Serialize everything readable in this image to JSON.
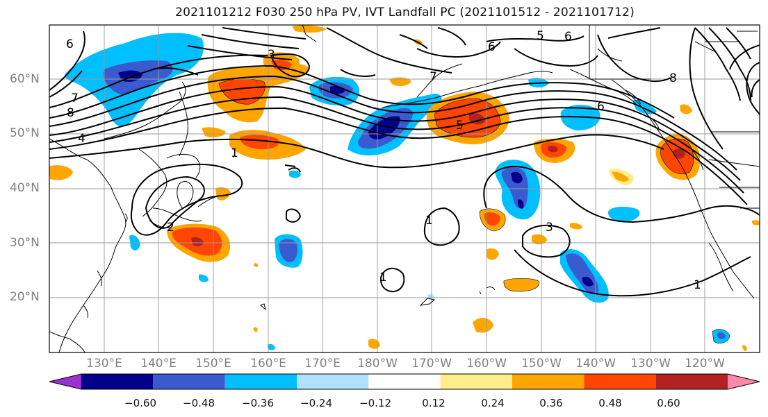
{
  "title": "2021101212 F030 250 hPa PV, IVT Landfall PC (2021101512 - 2021101712)",
  "lat_labels": [
    "60°N",
    "50°N",
    "40°N",
    "30°N",
    "20°N"
  ],
  "lon_labels": [
    "130°E",
    "140°E",
    "150°E",
    "160°E",
    "170°E",
    "180°W",
    "170°W",
    "160°W",
    "150°W",
    "140°W",
    "130°W",
    "120°W"
  ],
  "colorbar": {
    "ticks": [
      "−0.60",
      "−0.48",
      "−0.36",
      "−0.24",
      "−0.12",
      "0.12",
      "0.24",
      "0.36",
      "0.48",
      "0.60"
    ],
    "colors": [
      "#9932CC",
      "#00008B",
      "#3A5BD0",
      "#00BFFF",
      "#B0E2FF",
      "#FFFFFF",
      "#FFEC8B",
      "#FFA500",
      "#FF4500",
      "#B22222",
      "#FF88AA"
    ]
  },
  "contour_labels": [
    {
      "text": "6"
    },
    {
      "text": "7"
    },
    {
      "text": "8"
    },
    {
      "text": "4"
    },
    {
      "text": "3"
    },
    {
      "text": "1"
    },
    {
      "text": "2"
    },
    {
      "text": "5"
    },
    {
      "text": "6"
    },
    {
      "text": "6"
    },
    {
      "text": "6"
    },
    {
      "text": "1"
    },
    {
      "text": "1"
    },
    {
      "text": "3"
    },
    {
      "text": "1"
    },
    {
      "text": "7"
    },
    {
      "text": "8"
    },
    {
      "text": "5"
    }
  ],
  "colors": {
    "contour": "#000000",
    "grid": "#999999",
    "coast": "#000000",
    "axis_labels": "#808080"
  }
}
